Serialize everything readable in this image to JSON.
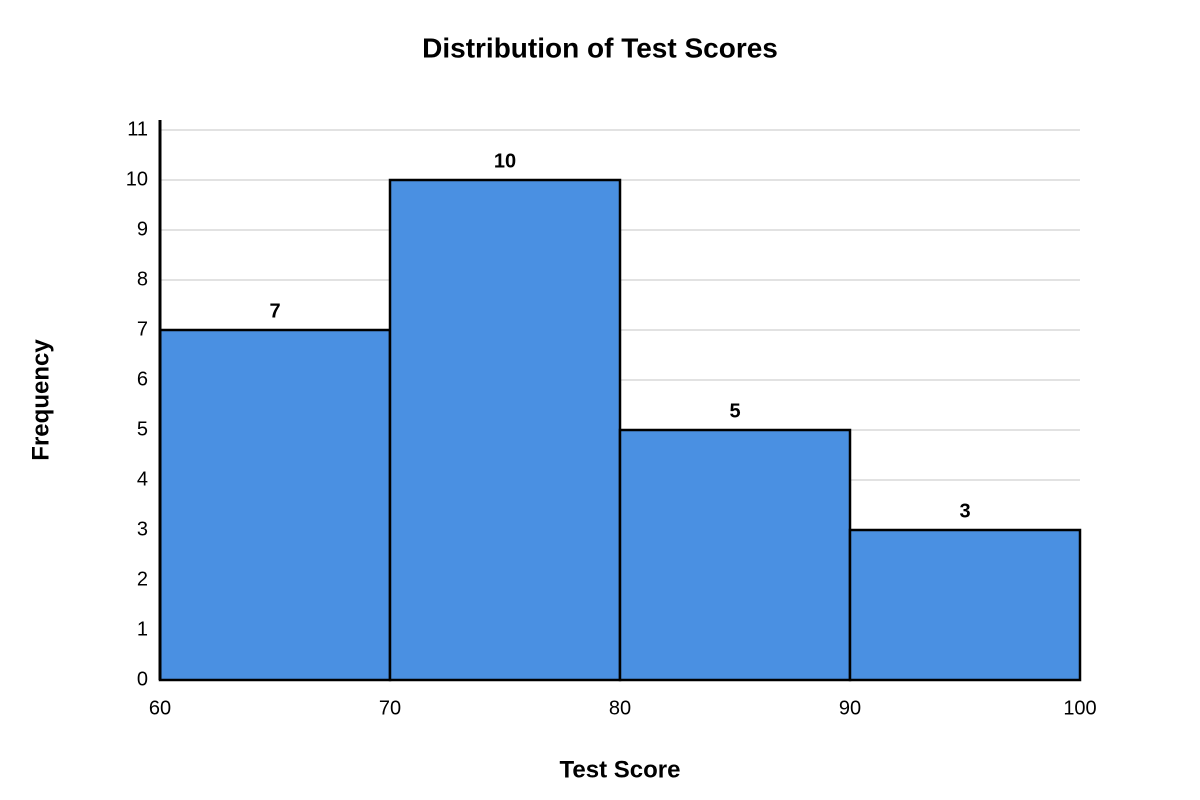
{
  "chart_data": {
    "type": "histogram",
    "title": "Distribution of Test Scores",
    "x_label": "Test Score",
    "y_label": "Frequency",
    "bins": [
      60,
      70,
      80,
      90,
      100
    ],
    "values": [
      7,
      10,
      5,
      3
    ],
    "color": "#4a90e2",
    "xlim": [
      60,
      100
    ],
    "xticks": [
      60,
      70,
      80,
      90,
      100
    ],
    "ylim": [
      0,
      11
    ],
    "yticks": [
      0,
      1,
      2,
      3,
      4,
      5,
      6,
      7,
      8,
      9,
      10,
      11
    ],
    "grid": true
  }
}
